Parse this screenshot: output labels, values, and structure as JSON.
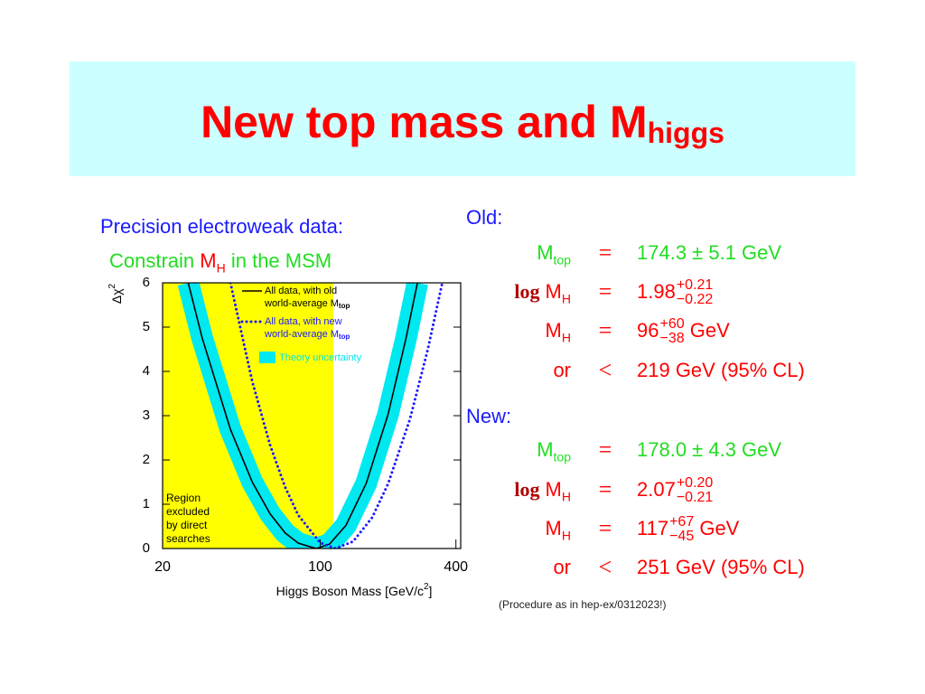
{
  "title": "New top mass and M",
  "title_sub": "higgs",
  "left_heading": "Precision electroweak data:",
  "left_sub_a": "Constrain ",
  "left_sub_m": "M",
  "left_sub_msub": "H",
  "left_sub_b": " in the MSM",
  "chart_data": {
    "type": "line",
    "xlabel": "Higgs Boson Mass [GeV/c",
    "xlabel_sup": "2",
    "xlabel_end": "]",
    "ylabel": "Δχ",
    "ylabel_sup": "2",
    "xlim": [
      20,
      420
    ],
    "xticks": [
      20,
      100,
      400
    ],
    "xscale": "log",
    "ylim": [
      0,
      6
    ],
    "yticks": [
      0,
      1,
      2,
      3,
      4,
      5,
      6
    ],
    "excluded_below": 114.4,
    "excluded_color": "#ffff00",
    "excluded_label": [
      "Region",
      "excluded",
      "by direct",
      "searches"
    ],
    "band": {
      "name": "Theory uncertainty",
      "color": "#00e8f0"
    },
    "series": [
      {
        "name_lines": [
          "All data, with old",
          "world-average M"
        ],
        "name_sub": "top",
        "color": "#000000",
        "style": "solid",
        "x": [
          26,
          30,
          40,
          50,
          60,
          70,
          80,
          96,
          110,
          130,
          160,
          200,
          240,
          270
        ],
        "values": [
          6,
          4.75,
          2.69,
          1.5,
          0.78,
          0.35,
          0.12,
          0,
          0.1,
          0.52,
          1.47,
          3.03,
          4.73,
          6
        ]
      },
      {
        "name_lines": [
          "All data, with new",
          "world-average M"
        ],
        "name_sub": "top",
        "color": "#1a1aff",
        "style": "dotted",
        "x": [
          40,
          50,
          60,
          70,
          80,
          100,
          117,
          140,
          170,
          200,
          250,
          300,
          348
        ],
        "values": [
          6,
          3.77,
          2.33,
          1.38,
          0.75,
          0.13,
          0,
          0.16,
          0.7,
          1.46,
          2.92,
          4.49,
          6
        ]
      }
    ]
  },
  "results": [
    {
      "heading": "Old:",
      "rows": [
        {
          "lhs": "M",
          "lhs_sub": "top",
          "op": "=",
          "value": "174.3 ± 5.1 GeV",
          "color": "#22dd22"
        },
        {
          "prefix": "log",
          "lhs": "M",
          "lhs_sub": "H",
          "op": "=",
          "value": "1.98",
          "plus": "+0.21",
          "minus": "−0.22",
          "color": "#ff0000"
        },
        {
          "lhs": "M",
          "lhs_sub": "H",
          "op": "=",
          "value": "96",
          "plus": "+60",
          "minus": "−38",
          "unit": " GeV",
          "color": "#ff0000"
        },
        {
          "lhs": "or",
          "op": "<",
          "value": "219 GeV (95% CL)",
          "color": "#ff0000"
        }
      ]
    },
    {
      "heading": "New:",
      "rows": [
        {
          "lhs": "M",
          "lhs_sub": "top",
          "op": "=",
          "value": "178.0 ± 4.3 GeV",
          "color": "#22dd22"
        },
        {
          "prefix": "log",
          "lhs": "M",
          "lhs_sub": "H",
          "op": "=",
          "value": "2.07",
          "plus": "+0.20",
          "minus": "−0.21",
          "color": "#ff0000"
        },
        {
          "lhs": "M",
          "lhs_sub": "H",
          "op": "=",
          "value": "117",
          "plus": "+67",
          "minus": "−45",
          "unit": " GeV",
          "color": "#ff0000"
        },
        {
          "lhs": "or",
          "op": "<",
          "value": "251 GeV (95% CL)",
          "color": "#ff0000"
        }
      ]
    }
  ],
  "footnote": "(Procedure as in hep-ex/0312023!)"
}
